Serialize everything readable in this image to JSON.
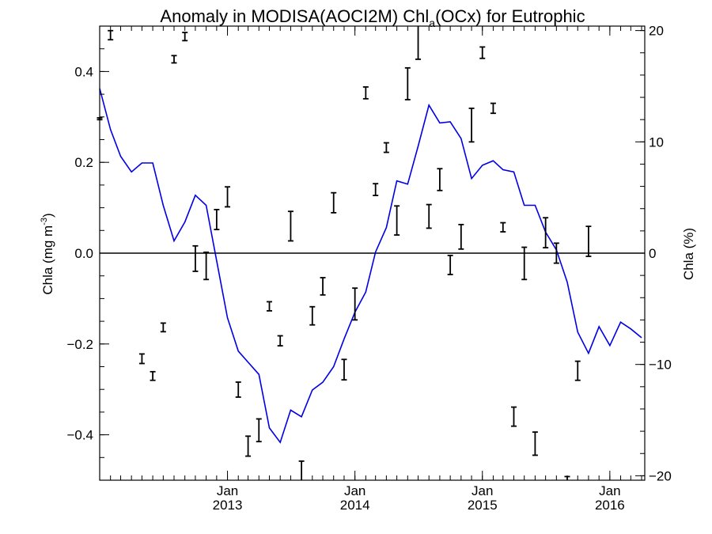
{
  "chart_data": {
    "type": "line",
    "title": {
      "prefix": "Anomaly in MODISA(AOCI2M) Chl",
      "subscript": "a",
      "suffix": "(OCx) for Eutrophic"
    },
    "ylabel_left": {
      "prefix": "Chla (mg m",
      "superscript": "-3",
      "suffix": ")"
    },
    "ylabel_right": "Chla (%)",
    "ylim_left": [
      -0.5,
      0.5
    ],
    "ylim_right": [
      -20.4,
      20.4
    ],
    "left_ticks": [
      {
        "value": -0.4,
        "label": "−0.4"
      },
      {
        "value": -0.2,
        "label": "−0.2"
      },
      {
        "value": 0.0,
        "label": "0.0"
      },
      {
        "value": 0.2,
        "label": "0.2"
      },
      {
        "value": 0.4,
        "label": "0.4"
      }
    ],
    "right_ticks": [
      {
        "value": -20,
        "label": "−20"
      },
      {
        "value": -10,
        "label": "−10"
      },
      {
        "value": 0,
        "label": "0"
      },
      {
        "value": 10,
        "label": "10"
      },
      {
        "value": 20,
        "label": "20"
      }
    ],
    "x_range": [
      "2012-01-01",
      "2016-04-10"
    ],
    "x_ticks": [
      {
        "date": "2013-01-01",
        "month": "Jan",
        "year": "2013"
      },
      {
        "date": "2014-01-01",
        "month": "Jan",
        "year": "2014"
      },
      {
        "date": "2015-01-01",
        "month": "Jan",
        "year": "2015"
      },
      {
        "date": "2016-01-01",
        "month": "Jan",
        "year": "2016"
      }
    ],
    "zero_line": true,
    "series": [
      {
        "axis": "right",
        "color": "#0000e6",
        "style": "line",
        "points": [
          [
            "2012-01-01",
            14.8
          ],
          [
            "2012-02-01",
            11.1
          ],
          [
            "2012-03-01",
            8.7
          ],
          [
            "2012-04-01",
            7.3
          ],
          [
            "2012-05-01",
            8.1
          ],
          [
            "2012-06-01",
            8.1
          ],
          [
            "2012-07-01",
            4.3
          ],
          [
            "2012-08-01",
            1.1
          ],
          [
            "2012-09-01",
            2.8
          ],
          [
            "2012-10-01",
            5.2
          ],
          [
            "2012-11-01",
            4.3
          ],
          [
            "2012-12-01",
            -0.7
          ],
          [
            "2013-01-01",
            -5.8
          ],
          [
            "2013-02-01",
            -8.8
          ],
          [
            "2013-03-01",
            -9.8
          ],
          [
            "2013-04-01",
            -10.9
          ],
          [
            "2013-05-01",
            -15.7
          ],
          [
            "2013-06-01",
            -17.0
          ],
          [
            "2013-07-01",
            -14.1
          ],
          [
            "2013-08-01",
            -14.7
          ],
          [
            "2013-09-01",
            -12.3
          ],
          [
            "2013-10-01",
            -11.6
          ],
          [
            "2013-11-01",
            -10.2
          ],
          [
            "2013-12-01",
            -7.7
          ],
          [
            "2014-01-01",
            -5.3
          ],
          [
            "2014-02-01",
            -3.5
          ],
          [
            "2014-03-01",
            0.1
          ],
          [
            "2014-04-01",
            2.3
          ],
          [
            "2014-05-01",
            6.5
          ],
          [
            "2014-06-01",
            6.2
          ],
          [
            "2014-07-01",
            9.6
          ],
          [
            "2014-08-01",
            13.3
          ],
          [
            "2014-09-01",
            11.7
          ],
          [
            "2014-10-01",
            11.8
          ],
          [
            "2014-11-01",
            10.3
          ],
          [
            "2014-12-01",
            6.7
          ],
          [
            "2015-01-01",
            7.9
          ],
          [
            "2015-02-01",
            8.3
          ],
          [
            "2015-03-01",
            7.5
          ],
          [
            "2015-04-01",
            7.3
          ],
          [
            "2015-05-01",
            4.3
          ],
          [
            "2015-06-01",
            4.3
          ],
          [
            "2015-07-01",
            1.9
          ],
          [
            "2015-08-01",
            0.3
          ],
          [
            "2015-09-01",
            -2.6
          ],
          [
            "2015-10-01",
            -7.1
          ],
          [
            "2015-11-01",
            -9.0
          ],
          [
            "2015-12-01",
            -6.6
          ],
          [
            "2016-01-01",
            -8.3
          ],
          [
            "2016-02-01",
            -6.2
          ],
          [
            "2016-03-01",
            -6.8
          ],
          [
            "2016-04-01",
            -7.6
          ]
        ]
      },
      {
        "axis": "left",
        "color": "#000000",
        "style": "errorbar",
        "points": [
          [
            "2012-01-01",
            0.296,
            0.294,
            0.298
          ],
          [
            "2012-02-01",
            0.48,
            0.47,
            0.49
          ],
          [
            "2012-05-01",
            -0.233,
            -0.243,
            -0.222
          ],
          [
            "2012-06-01",
            -0.27,
            -0.28,
            -0.261
          ],
          [
            "2012-07-01",
            -0.163,
            -0.173,
            -0.154
          ],
          [
            "2012-08-01",
            0.427,
            0.419,
            0.435
          ],
          [
            "2012-09-01",
            0.477,
            0.468,
            0.486
          ],
          [
            "2012-10-01",
            -0.012,
            -0.04,
            0.016
          ],
          [
            "2012-11-01",
            -0.028,
            -0.058,
            0.002
          ],
          [
            "2012-12-01",
            0.074,
            0.052,
            0.096
          ],
          [
            "2013-01-01",
            0.124,
            0.102,
            0.146
          ],
          [
            "2013-02-01",
            -0.3,
            -0.317,
            -0.284
          ],
          [
            "2013-03-01",
            -0.425,
            -0.447,
            -0.403
          ],
          [
            "2013-04-01",
            -0.39,
            -0.415,
            -0.365
          ],
          [
            "2013-05-01",
            -0.117,
            -0.127,
            -0.107
          ],
          [
            "2013-06-01",
            -0.193,
            -0.204,
            -0.182
          ],
          [
            "2013-07-01",
            0.06,
            0.027,
            0.092
          ],
          [
            "2013-08-01",
            -0.485,
            -0.505,
            -0.458
          ],
          [
            "2013-09-01",
            -0.138,
            -0.158,
            -0.118
          ],
          [
            "2013-10-01",
            -0.073,
            -0.092,
            -0.054
          ],
          [
            "2013-11-01",
            0.111,
            0.089,
            0.133
          ],
          [
            "2013-12-01",
            -0.256,
            -0.279,
            -0.234
          ],
          [
            "2014-01-01",
            -0.112,
            -0.147,
            -0.077
          ],
          [
            "2014-02-01",
            0.353,
            0.34,
            0.366
          ],
          [
            "2014-03-01",
            0.14,
            0.127,
            0.153
          ],
          [
            "2014-04-01",
            0.232,
            0.222,
            0.243
          ],
          [
            "2014-05-01",
            0.072,
            0.04,
            0.104
          ],
          [
            "2014-06-01",
            0.373,
            0.338,
            0.408
          ],
          [
            "2014-07-01",
            0.465,
            0.427,
            0.503
          ],
          [
            "2014-08-01",
            0.081,
            0.055,
            0.107
          ],
          [
            "2014-09-01",
            0.162,
            0.138,
            0.186
          ],
          [
            "2014-10-01",
            -0.026,
            -0.047,
            -0.005
          ],
          [
            "2014-11-01",
            0.036,
            0.009,
            0.063
          ],
          [
            "2014-12-01",
            0.282,
            0.245,
            0.319
          ],
          [
            "2015-01-01",
            0.441,
            0.429,
            0.454
          ],
          [
            "2015-02-01",
            0.319,
            0.308,
            0.33
          ],
          [
            "2015-03-01",
            0.057,
            0.047,
            0.067
          ],
          [
            "2015-04-01",
            -0.36,
            -0.381,
            -0.339
          ],
          [
            "2015-05-01",
            -0.022,
            -0.058,
            0.013
          ],
          [
            "2015-06-01",
            -0.419,
            -0.445,
            -0.394
          ],
          [
            "2015-07-01",
            0.045,
            0.012,
            0.078
          ],
          [
            "2015-08-01",
            0.0,
            -0.022,
            0.022
          ],
          [
            "2015-09-01",
            -0.497,
            -0.502,
            -0.492
          ],
          [
            "2015-10-01",
            -0.259,
            -0.28,
            -0.238
          ],
          [
            "2015-11-01",
            0.026,
            -0.007,
            0.059
          ]
        ]
      }
    ]
  }
}
